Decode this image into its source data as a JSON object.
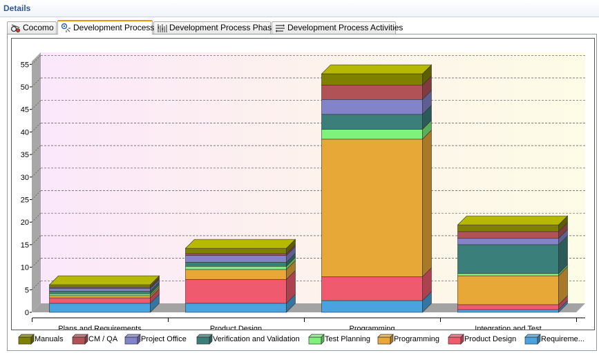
{
  "header": {
    "title": "Details"
  },
  "tabs": [
    {
      "label": "Cocomo",
      "icon": "cocomo-icon"
    },
    {
      "label": "Development Process",
      "icon": "development-process-icon",
      "active": true
    },
    {
      "label": "Development Process Phase",
      "icon": "phase-icon"
    },
    {
      "label": "Development Process Activities",
      "icon": "activities-icon"
    }
  ],
  "chart_data": {
    "type": "bar",
    "stacked": true,
    "three_d": true,
    "categories": [
      "Plans and Requirements",
      "Product Design",
      "Programming",
      "Integration and Test"
    ],
    "series": [
      {
        "name": "Requireme...",
        "color": "#4aa3df",
        "values": [
          2.0,
          2.0,
          2.6,
          0.6
        ]
      },
      {
        "name": "Product Design",
        "color": "#ef5a6e",
        "values": [
          1.2,
          5.3,
          5.3,
          1.1
        ]
      },
      {
        "name": "Programming",
        "color": "#e8a838",
        "values": [
          0.5,
          2.2,
          30.5,
          6.4
        ]
      },
      {
        "name": "Test Planning",
        "color": "#7ef27b",
        "values": [
          0.4,
          0.7,
          2.2,
          0.5
        ]
      },
      {
        "name": "Verification and Validation",
        "color": "#3b7f7b",
        "values": [
          0.6,
          0.9,
          3.3,
          6.4
        ]
      },
      {
        "name": "Project Office",
        "color": "#8283c8",
        "values": [
          0.6,
          1.5,
          3.3,
          1.4
        ]
      },
      {
        "name": "CM / QA",
        "color": "#b05256",
        "values": [
          0.3,
          0.4,
          3.2,
          1.5
        ]
      },
      {
        "name": "Manuals",
        "color": "#808000",
        "values": [
          0.5,
          1.2,
          2.5,
          1.5
        ]
      }
    ],
    "y_ticks": [
      "0",
      "5",
      "10",
      "15",
      "20",
      "25",
      "30",
      "35",
      "40",
      "45",
      "50",
      "55"
    ],
    "ylim": [
      0,
      58
    ],
    "grid": true,
    "legend_position": "bottom"
  }
}
